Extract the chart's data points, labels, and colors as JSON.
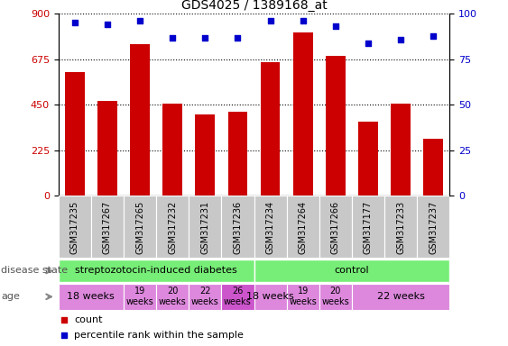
{
  "title": "GDS4025 / 1389168_at",
  "samples": [
    "GSM317235",
    "GSM317267",
    "GSM317265",
    "GSM317232",
    "GSM317231",
    "GSM317236",
    "GSM317234",
    "GSM317264",
    "GSM317266",
    "GSM317177",
    "GSM317233",
    "GSM317237"
  ],
  "counts": [
    610,
    470,
    750,
    455,
    400,
    415,
    660,
    810,
    690,
    365,
    455,
    280
  ],
  "percentiles": [
    95,
    94,
    96,
    87,
    87,
    87,
    96,
    96,
    93,
    84,
    86,
    88
  ],
  "ylim_left": [
    0,
    900
  ],
  "ylim_right": [
    0,
    100
  ],
  "yticks_left": [
    0,
    225,
    450,
    675,
    900
  ],
  "yticks_right": [
    0,
    25,
    50,
    75,
    100
  ],
  "bar_color": "#cc0000",
  "scatter_color": "#0000cc",
  "tick_label_color_left": "#cc0000",
  "tick_label_color_right": "#0000cc",
  "sample_bg_color": "#cccccc",
  "disease_groups": [
    {
      "label": "streptozotocin-induced diabetes",
      "start": 0,
      "end": 6,
      "color": "#77ee77"
    },
    {
      "label": "control",
      "start": 6,
      "end": 12,
      "color": "#77ee77"
    }
  ],
  "age_groups": [
    {
      "label": "18 weeks",
      "start": 0,
      "end": 2,
      "color": "#dd88dd",
      "fontsize": 8,
      "multiline": false
    },
    {
      "label": "19\nweeks",
      "start": 2,
      "end": 3,
      "color": "#dd88dd",
      "fontsize": 7,
      "multiline": true
    },
    {
      "label": "20\nweeks",
      "start": 3,
      "end": 4,
      "color": "#dd88dd",
      "fontsize": 7,
      "multiline": true
    },
    {
      "label": "22\nweeks",
      "start": 4,
      "end": 5,
      "color": "#dd88dd",
      "fontsize": 7,
      "multiline": true
    },
    {
      "label": "26\nweeks",
      "start": 5,
      "end": 6,
      "color": "#cc55cc",
      "fontsize": 7,
      "multiline": true
    },
    {
      "label": "18 weeks",
      "start": 6,
      "end": 7,
      "color": "#dd88dd",
      "fontsize": 8,
      "multiline": false
    },
    {
      "label": "19\nweeks",
      "start": 7,
      "end": 8,
      "color": "#dd88dd",
      "fontsize": 7,
      "multiline": true
    },
    {
      "label": "20\nweeks",
      "start": 8,
      "end": 9,
      "color": "#dd88dd",
      "fontsize": 7,
      "multiline": true
    },
    {
      "label": "22 weeks",
      "start": 9,
      "end": 12,
      "color": "#dd88dd",
      "fontsize": 8,
      "multiline": false
    }
  ]
}
